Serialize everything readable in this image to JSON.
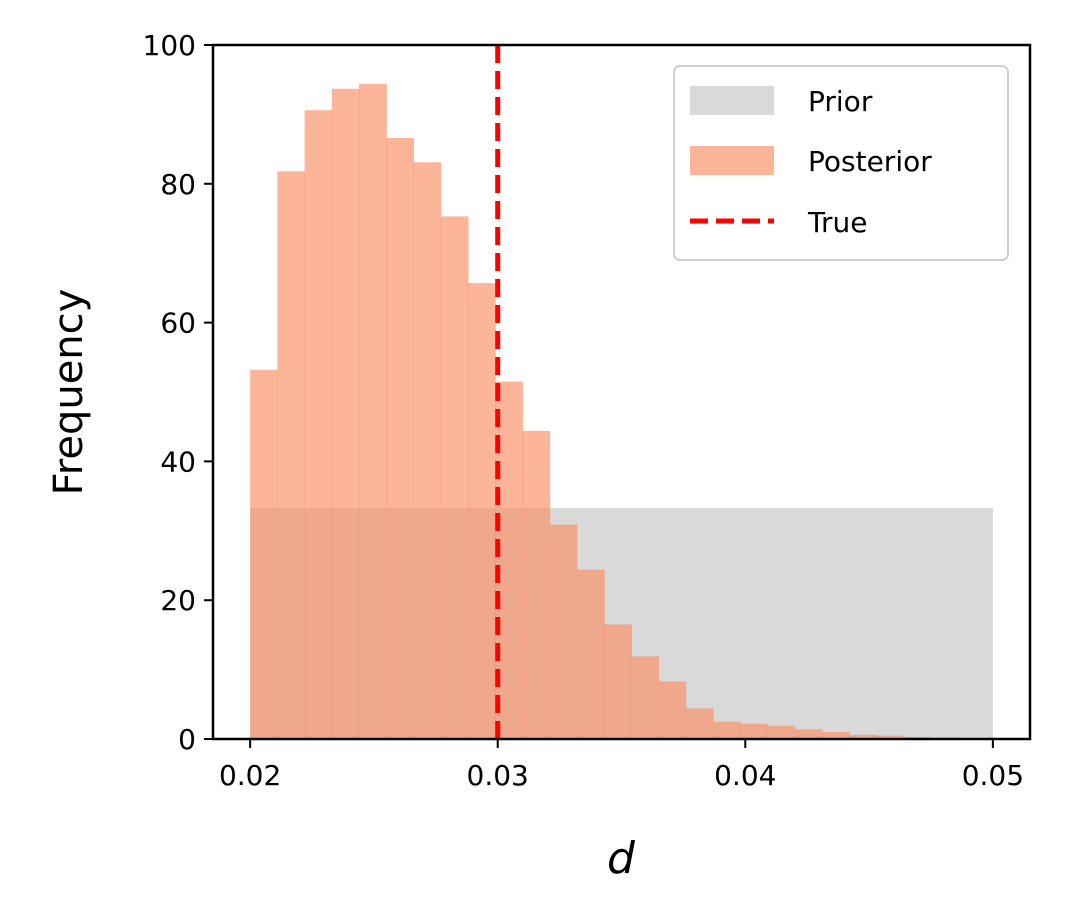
{
  "chart_data": {
    "type": "bar",
    "xlabel": "d",
    "ylabel": "Frequency",
    "xlim": [
      0.0185,
      0.0515
    ],
    "ylim": [
      0,
      100
    ],
    "xticks": [
      0.02,
      0.03,
      0.04,
      0.05
    ],
    "xtick_labels": [
      "0.02",
      "0.03",
      "0.04",
      "0.05"
    ],
    "yticks": [
      0,
      20,
      40,
      60,
      80,
      100
    ],
    "ytick_labels": [
      "0",
      "20",
      "40",
      "60",
      "80",
      "100"
    ],
    "bin_edges": [
      0.02,
      0.0211,
      0.0222,
      0.0233,
      0.0244,
      0.0255,
      0.0266,
      0.0277,
      0.0288,
      0.0299,
      0.031,
      0.0321,
      0.0332,
      0.0343,
      0.0354,
      0.0365,
      0.0376,
      0.0387,
      0.0398,
      0.0409,
      0.042,
      0.0431,
      0.0442,
      0.0453,
      0.0464,
      0.0475,
      0.0486,
      0.0497
    ],
    "series": [
      {
        "name": "Prior",
        "color": "#bfbfbf",
        "opacity": 0.6,
        "bins": [
          [
            0.02,
            0.05,
            33.3
          ]
        ]
      },
      {
        "name": "Posterior",
        "color": "#fc8d62",
        "opacity": 0.65,
        "values": [
          53.2,
          81.8,
          90.6,
          93.7,
          94.4,
          86.6,
          83.1,
          75.3,
          65.7,
          51.5,
          44.4,
          30.9,
          24.4,
          16.5,
          11.9,
          8.3,
          4.4,
          2.5,
          2.2,
          1.9,
          1.4,
          1.0,
          0.6,
          0.5,
          0.3,
          0.2,
          0.1
        ]
      }
    ],
    "reference_lines": [
      {
        "name": "True",
        "x": 0.03,
        "color": "#ff0000",
        "style": "dashed"
      }
    ],
    "legend": {
      "position": "top-right",
      "entries": [
        "Prior",
        "Posterior",
        "True"
      ]
    },
    "grid": false
  }
}
